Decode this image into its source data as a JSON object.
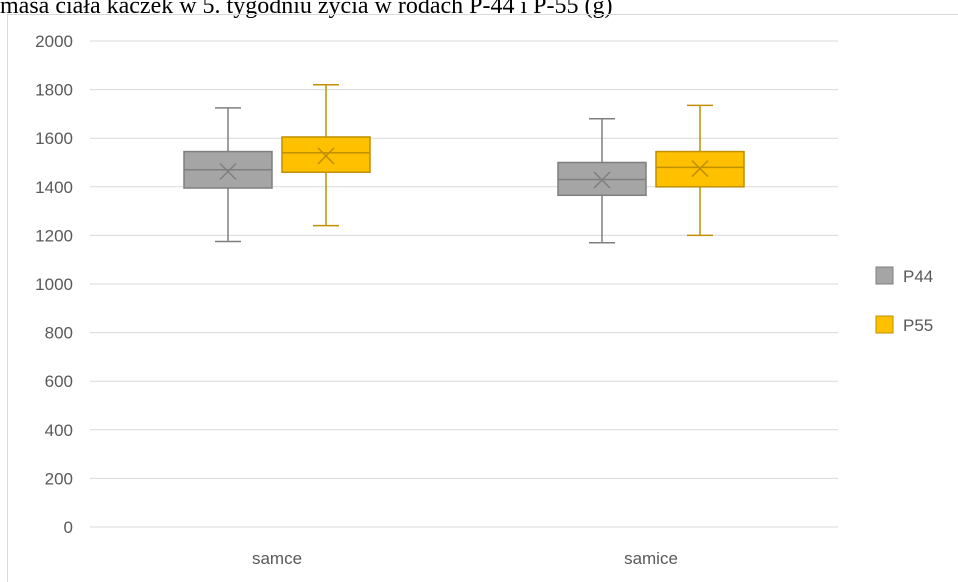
{
  "title": "masa ciała kaczek w 5. tygodniu życia w rodach P-44 i P-55 (g)",
  "colors": {
    "P44_fill": "#a5a5a5",
    "P44_stroke": "#7f7f7f",
    "P55_fill": "#ffc000",
    "P55_stroke": "#bf9000",
    "grid": "#d9d9d9",
    "text": "#595959"
  },
  "chart_data": {
    "type": "box",
    "title": "masa ciała kaczek w 5. tygodniu życia w rodach P-44 i P-55 (g)",
    "categories": [
      "samce",
      "samice"
    ],
    "ylim": [
      0,
      2000
    ],
    "yticks": [
      0,
      200,
      400,
      600,
      800,
      1000,
      1200,
      1400,
      1600,
      1800,
      2000
    ],
    "grid": true,
    "legend_position": "right",
    "series": [
      {
        "name": "P44",
        "boxes": [
          {
            "min": 1175,
            "q1": 1395,
            "median": 1470,
            "mean": 1463,
            "q3": 1545,
            "max": 1725
          },
          {
            "min": 1170,
            "q1": 1365,
            "median": 1430,
            "mean": 1428,
            "q3": 1500,
            "max": 1680
          }
        ]
      },
      {
        "name": "P55",
        "boxes": [
          {
            "min": 1240,
            "q1": 1460,
            "median": 1540,
            "mean": 1527,
            "q3": 1605,
            "max": 1820
          },
          {
            "min": 1200,
            "q1": 1400,
            "median": 1480,
            "mean": 1475,
            "q3": 1545,
            "max": 1735
          }
        ]
      }
    ]
  }
}
